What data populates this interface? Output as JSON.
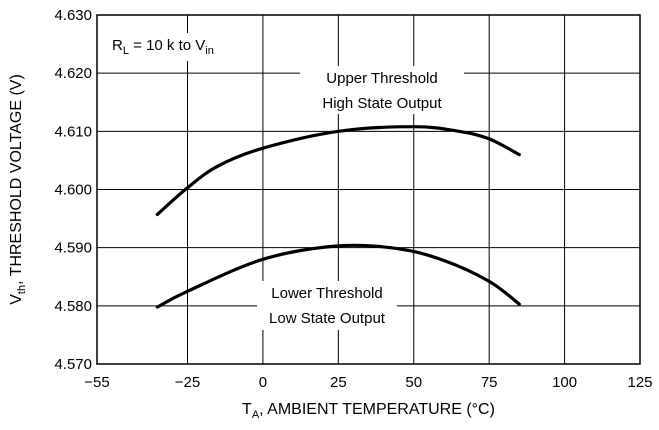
{
  "chart_data": {
    "type": "line",
    "x_axis": {
      "label_main": "T",
      "label_sub": "A",
      "label_rest": ", AMBIENT TEMPERATURE (°C)",
      "min": -55,
      "max": 125,
      "ticks": [
        -55,
        -25,
        0,
        25,
        50,
        75,
        100,
        125
      ],
      "tick_labels": [
        "−55",
        "−25",
        "0",
        "25",
        "50",
        "75",
        "100",
        "125"
      ]
    },
    "y_axis": {
      "label_main": "V",
      "label_sub": "th",
      "label_rest": ", THRESHOLD VOLTAGE (V)",
      "min": 4.57,
      "max": 4.63,
      "ticks": [
        4.57,
        4.58,
        4.59,
        4.6,
        4.61,
        4.62,
        4.63
      ],
      "tick_labels": [
        "4.570",
        "4.580",
        "4.590",
        "4.600",
        "4.610",
        "4.620",
        "4.630"
      ]
    },
    "grid": true,
    "condition": {
      "main": "R",
      "sub1": "L",
      "mid": " = 10 k to V",
      "sub2": "in"
    },
    "series": [
      {
        "name": "Upper Threshold High State Output",
        "label_lines": [
          "Upper Threshold",
          "High State Output"
        ],
        "color": "#000000",
        "points": [
          [
            -35,
            4.5957
          ],
          [
            -25,
            4.6003
          ],
          [
            -15,
            4.604
          ],
          [
            0,
            4.6071
          ],
          [
            25,
            4.61
          ],
          [
            50,
            4.6108
          ],
          [
            65,
            4.61
          ],
          [
            75,
            4.6087
          ],
          [
            85,
            4.606
          ]
        ]
      },
      {
        "name": "Lower Threshold Low State Output",
        "label_lines": [
          "Lower Threshold",
          "Low State Output"
        ],
        "color": "#000000",
        "points": [
          [
            -35,
            4.5798
          ],
          [
            -25,
            4.5825
          ],
          [
            0,
            4.588
          ],
          [
            25,
            4.5903
          ],
          [
            45,
            4.5898
          ],
          [
            60,
            4.5878
          ],
          [
            75,
            4.5842
          ],
          [
            85,
            4.5803
          ]
        ]
      }
    ]
  }
}
